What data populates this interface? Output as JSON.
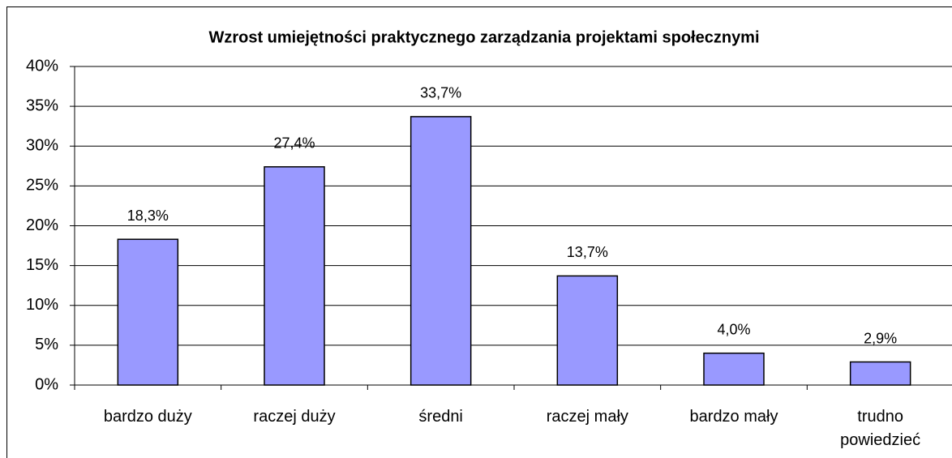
{
  "chart_data": {
    "type": "bar",
    "title": "Wzrost umiejętności praktycznego zarządzania projektami społecznymi",
    "categories": [
      "bardzo duży",
      "raczej duży",
      "średni",
      "raczej mały",
      "bardzo mały",
      "trudno powiedzieć"
    ],
    "values": [
      18.3,
      27.4,
      33.7,
      13.7,
      4.0,
      2.9
    ],
    "value_labels": [
      "18,3%",
      "27,4%",
      "33,7%",
      "13,7%",
      "4,0%",
      "2,9%"
    ],
    "color": "#9999ff",
    "ylim": [
      0,
      40
    ],
    "yticks": [
      {
        "value": 0,
        "label": "0%"
      },
      {
        "value": 5,
        "label": "5%"
      },
      {
        "value": 10,
        "label": "10%"
      },
      {
        "value": 15,
        "label": "15%"
      },
      {
        "value": 20,
        "label": "20%"
      },
      {
        "value": 25,
        "label": "25%"
      },
      {
        "value": 30,
        "label": "30%"
      },
      {
        "value": 35,
        "label": "35%"
      },
      {
        "value": 40,
        "label": "40%"
      }
    ],
    "grid": true
  }
}
